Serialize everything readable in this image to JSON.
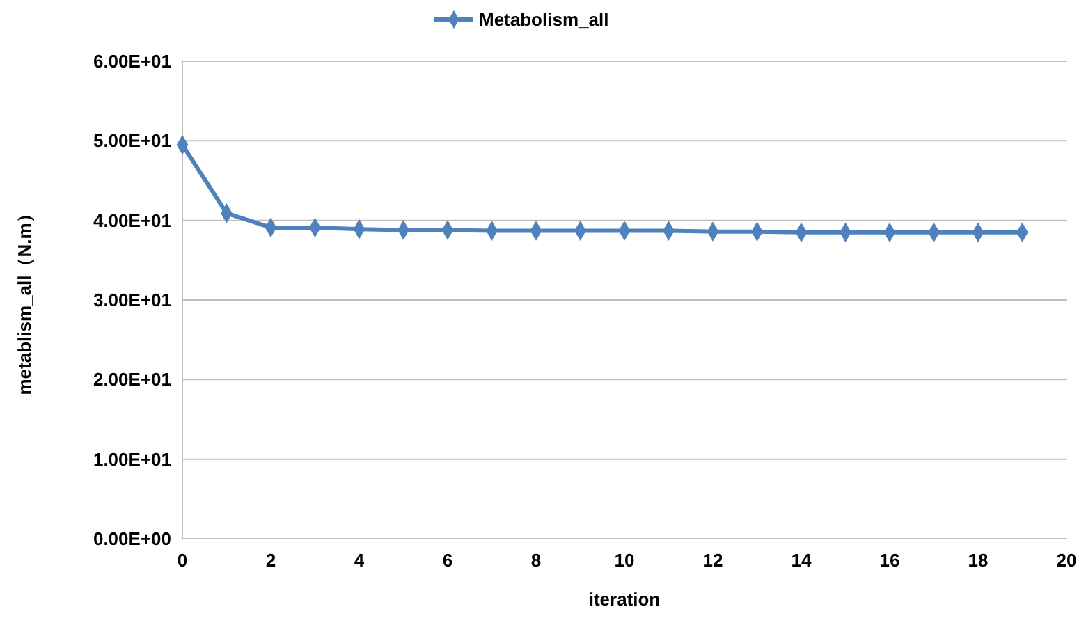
{
  "chart_data": {
    "type": "line",
    "xlabel": "iteration",
    "ylabel": "metablism_all（N.m）",
    "x": [
      0,
      1,
      2,
      3,
      4,
      5,
      6,
      7,
      8,
      9,
      10,
      11,
      12,
      13,
      14,
      15,
      16,
      17,
      18,
      19
    ],
    "series": [
      {
        "name": "Metabolism_all",
        "color": "#4f81bd",
        "values": [
          49.5,
          40.9,
          39.1,
          39.1,
          38.9,
          38.8,
          38.8,
          38.7,
          38.7,
          38.7,
          38.7,
          38.7,
          38.6,
          38.6,
          38.5,
          38.5,
          38.5,
          38.5,
          38.5,
          38.5
        ]
      }
    ],
    "xlim": [
      0,
      20
    ],
    "xticks": [
      0,
      2,
      4,
      6,
      8,
      10,
      12,
      14,
      16,
      18,
      20
    ],
    "ylim": [
      0,
      60
    ],
    "yticks": [
      {
        "value": 0,
        "label": "0.00E+00"
      },
      {
        "value": 10,
        "label": "1.00E+01"
      },
      {
        "value": 20,
        "label": "2.00E+01"
      },
      {
        "value": 30,
        "label": "3.00E+01"
      },
      {
        "value": 40,
        "label": "4.00E+01"
      },
      {
        "value": 50,
        "label": "5.00E+01"
      },
      {
        "value": 60,
        "label": "6.00E+01"
      }
    ],
    "grid": "y",
    "legend": "top",
    "marker": "diamond",
    "line_style": "solid"
  }
}
